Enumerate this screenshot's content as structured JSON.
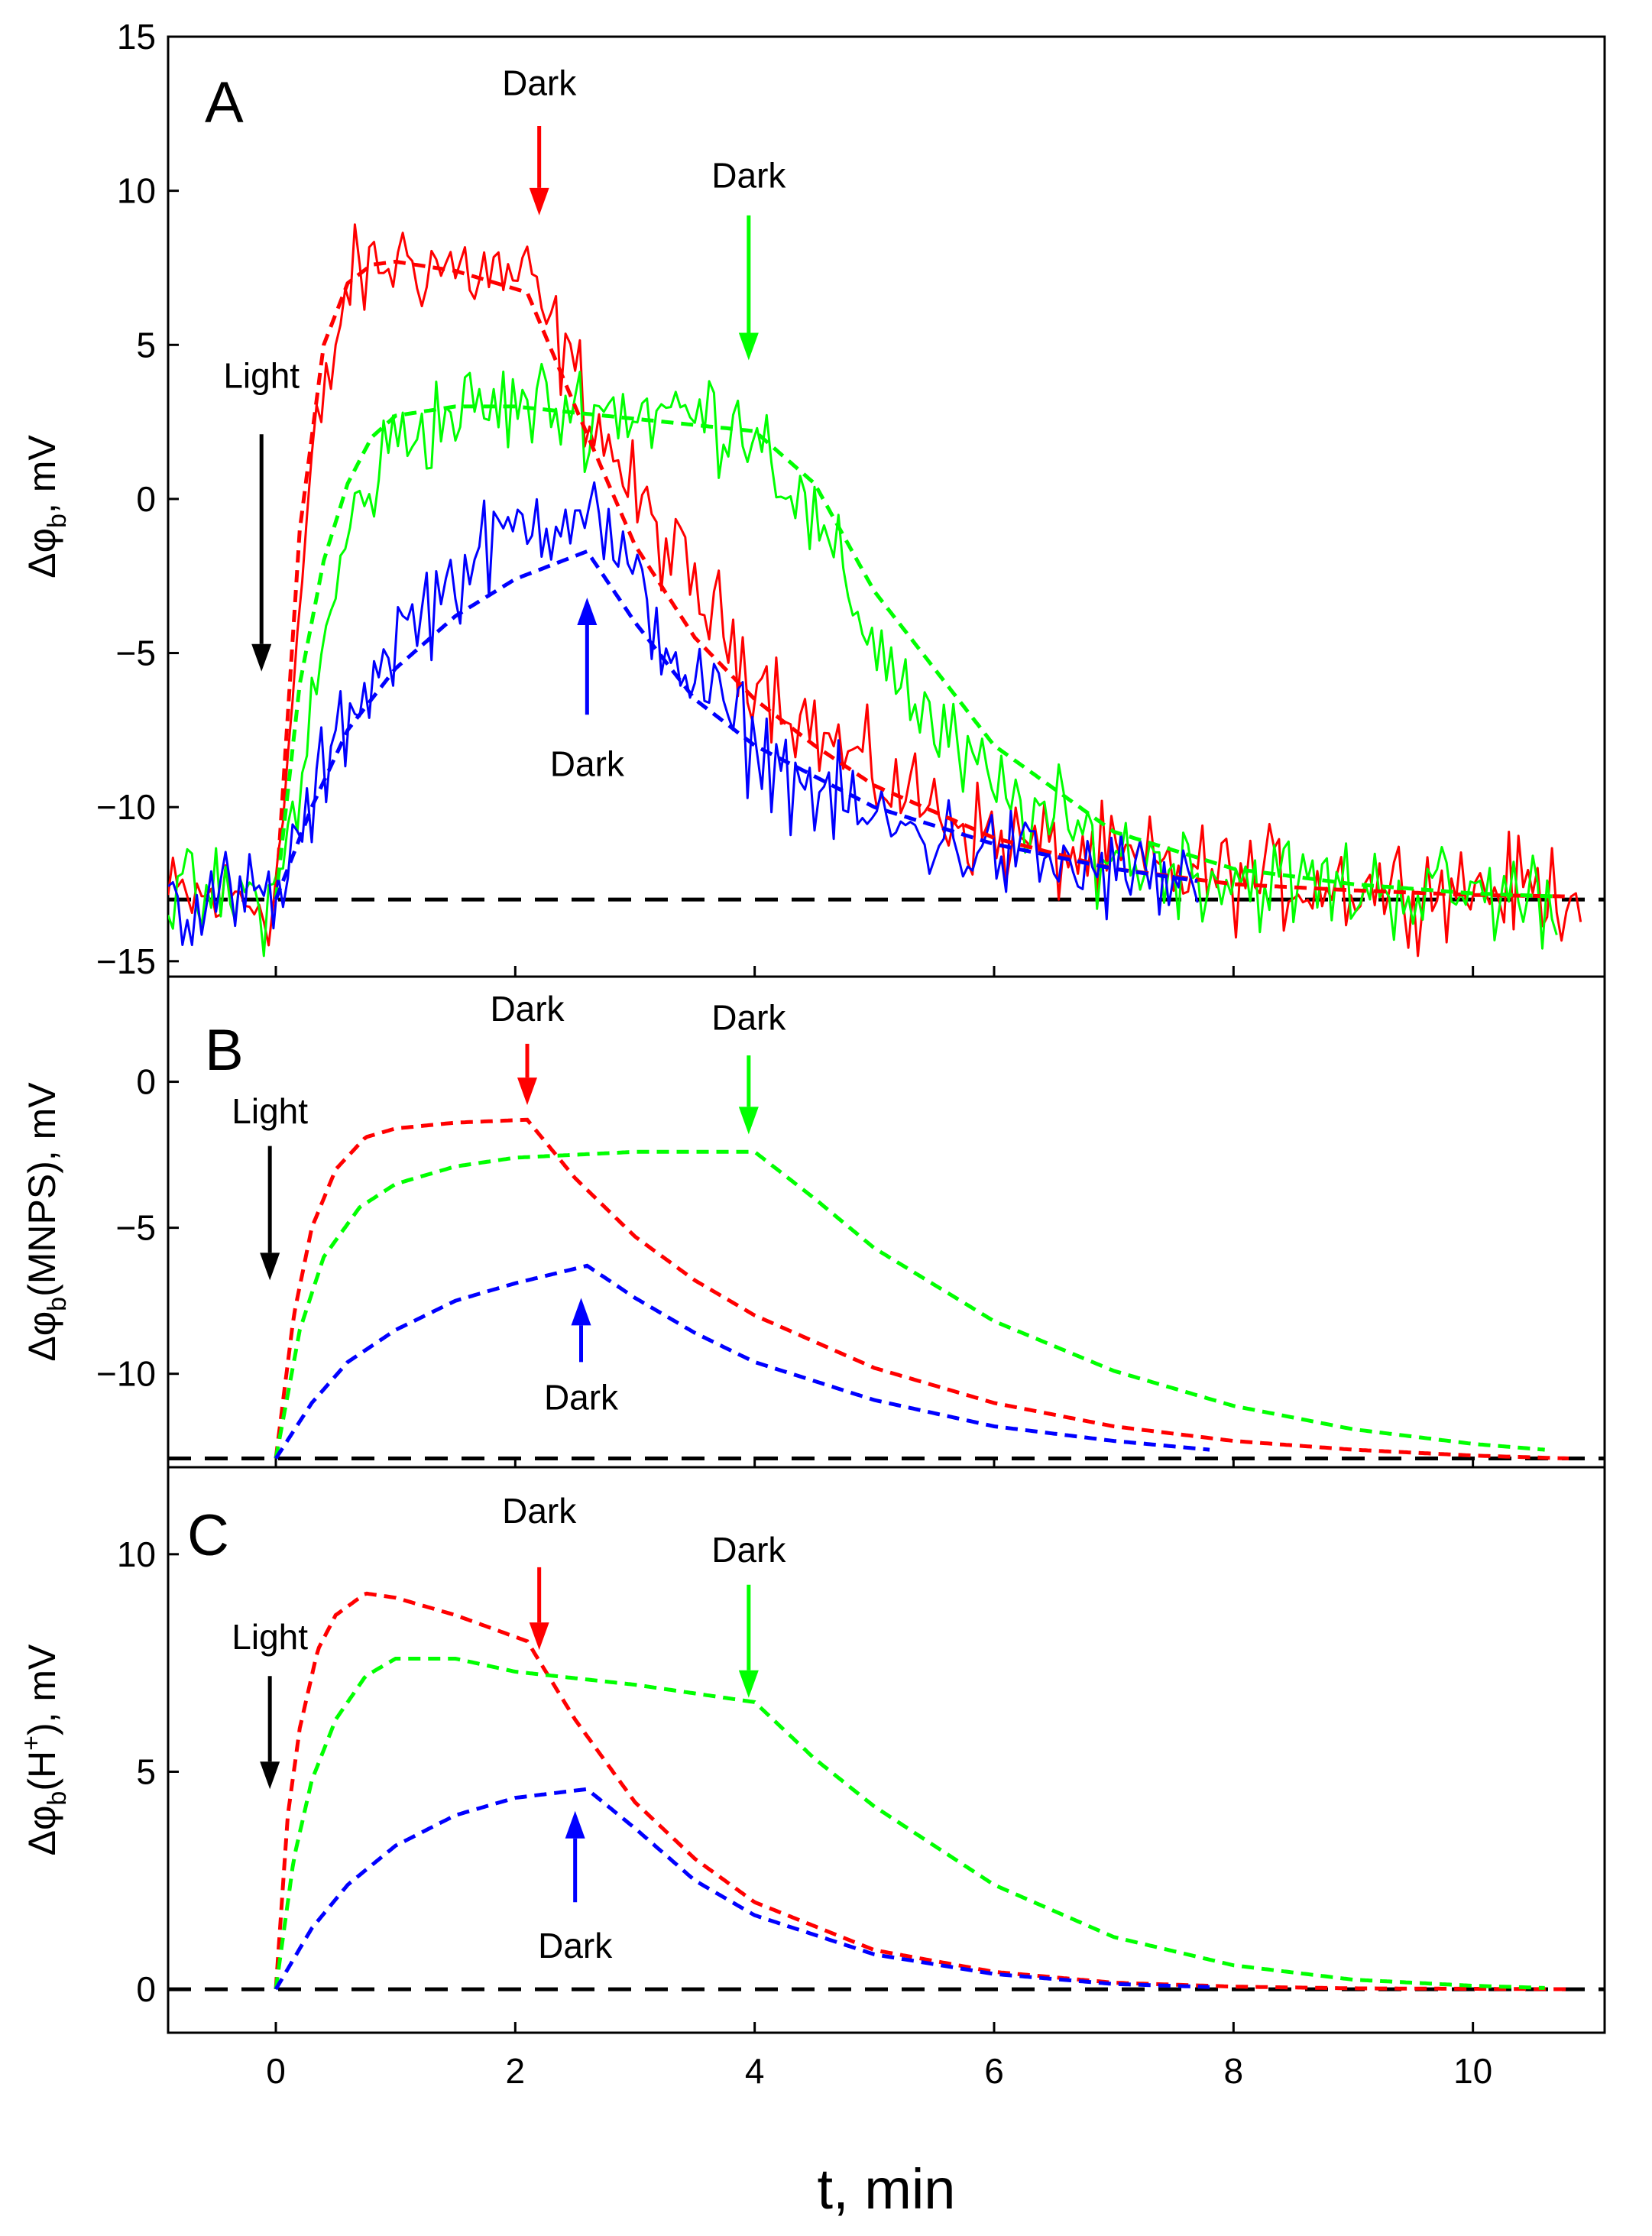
{
  "figure": {
    "xlabel": "t, min",
    "xlim": [
      -0.9,
      11.1
    ],
    "xticks": [
      0,
      2,
      4,
      6,
      8,
      10
    ],
    "xtick_labels": [
      "0",
      "2",
      "4",
      "6",
      "8",
      "10"
    ]
  },
  "colors": {
    "red": "#ff0000",
    "green": "#00ff00",
    "blue": "#0000ff",
    "black": "#000000"
  },
  "chart_data": [
    {
      "type": "line",
      "panel": "A",
      "ylabel_main": "Δφ",
      "ylabel_sub": "b",
      "ylabel_tail": ", mV",
      "ylim": [
        -15.5,
        15
      ],
      "yticks": [
        -15,
        -10,
        -5,
        0,
        5,
        10,
        15
      ],
      "ytick_labels": [
        "−15",
        "−10",
        "−5",
        "0",
        "5",
        "10",
        "15"
      ],
      "baseline": -13,
      "noise_amp": 1.0,
      "series": [
        {
          "color": "red",
          "style": "measured",
          "light_on": 0,
          "light_off": 2.1,
          "x": [
            -0.9,
            0,
            0.3,
            0.6,
            1.0,
            1.5,
            2.0,
            2.1,
            2.5,
            3.0,
            3.5,
            4.0,
            4.5,
            5.0,
            6.0,
            7.0,
            8.0,
            9.0,
            10.0,
            10.9
          ],
          "y": [
            -13,
            -13,
            1,
            7,
            7.8,
            7.5,
            7.2,
            7,
            4,
            0,
            -3,
            -5.5,
            -7.5,
            -9,
            -11,
            -11.8,
            -12.3,
            -12.5,
            -12.6,
            -12.7
          ]
        },
        {
          "color": "green",
          "style": "measured",
          "light_on": 0,
          "light_off": 4.0,
          "x": [
            -0.9,
            0,
            0.3,
            0.6,
            1.0,
            1.5,
            2.0,
            3.0,
            4.0,
            4.5,
            5.0,
            5.5,
            6.0,
            7.0,
            8.0,
            9.0,
            10.0,
            10.7
          ],
          "y": [
            -13,
            -13,
            -7,
            -1,
            2,
            2.8,
            3,
            2.9,
            2.5,
            -1,
            -4.5,
            -7.5,
            -9.5,
            -11.5,
            -12.3,
            -12.6,
            -12.8,
            -12.9
          ]
        },
        {
          "color": "blue",
          "style": "measured",
          "light_on": 0,
          "light_off": 2.6,
          "x": [
            -0.9,
            0,
            0.3,
            0.6,
            1.0,
            1.5,
            2.0,
            2.6,
            3.0,
            3.5,
            4.0,
            4.5,
            5.0,
            6.0,
            7.0,
            7.7
          ],
          "y": [
            -13,
            -13,
            -10,
            -7,
            -4.5,
            -2.5,
            -1,
            0,
            -3,
            -6,
            -8,
            -9.5,
            -10.5,
            -11.5,
            -12.2,
            -12.5
          ]
        },
        {
          "color": "red",
          "style": "fit",
          "x": [
            0,
            0.2,
            0.4,
            0.6,
            0.8,
            1.0,
            1.5,
            2.1,
            2.5,
            3.0,
            3.5,
            4.0,
            4.5,
            5.0,
            6.0,
            7.0,
            8.0,
            9.0,
            10.0,
            10.8
          ],
          "y": [
            -13,
            -1,
            5,
            7,
            7.6,
            7.7,
            7.4,
            6.7,
            3,
            -1.5,
            -4.5,
            -6.5,
            -8,
            -9.3,
            -11,
            -12,
            -12.5,
            -12.7,
            -12.85,
            -12.9
          ]
        },
        {
          "color": "green",
          "style": "fit",
          "x": [
            0,
            0.2,
            0.4,
            0.6,
            0.8,
            1.0,
            1.5,
            2.0,
            3.0,
            4.0,
            4.5,
            5.0,
            6.0,
            7.0,
            8.0,
            9.0,
            10.0,
            10.7
          ],
          "y": [
            -13,
            -6,
            -2,
            0.5,
            2,
            2.7,
            3,
            3,
            2.6,
            2.2,
            0.5,
            -3,
            -8,
            -10.8,
            -12,
            -12.5,
            -12.8,
            -12.9
          ]
        },
        {
          "color": "blue",
          "style": "fit",
          "x": [
            0,
            0.3,
            0.6,
            1.0,
            1.5,
            2.0,
            2.6,
            3.0,
            3.5,
            4.0,
            5.0,
            6.0,
            7.0,
            7.7
          ],
          "y": [
            -13,
            -10,
            -7.5,
            -5.5,
            -3.8,
            -2.6,
            -1.7,
            -4,
            -6.5,
            -8,
            -10,
            -11.2,
            -12,
            -12.4
          ]
        }
      ],
      "annotations": [
        {
          "text": "Light",
          "color": "black",
          "x": -0.12,
          "label_y": 4,
          "arrow_from": 2.1,
          "arrow_to": -5.6,
          "direction": "down"
        },
        {
          "text": "Dark",
          "color": "red",
          "x": 2.2,
          "label_y": 13.5,
          "arrow_from": 12.1,
          "arrow_to": 9.2,
          "direction": "down"
        },
        {
          "text": "Dark",
          "color": "green",
          "x": 3.95,
          "label_y": 10.5,
          "arrow_from": 9.2,
          "arrow_to": 4.5,
          "direction": "down"
        },
        {
          "text": "Dark",
          "color": "blue",
          "x": 2.6,
          "label_y": -8.6,
          "arrow_from": -7,
          "arrow_to": -3.2,
          "direction": "up"
        }
      ]
    },
    {
      "type": "line",
      "panel": "B",
      "ylabel_main": "Δφ",
      "ylabel_sub": "b",
      "ylabel_tail": "(MNPS), mV",
      "ylim": [
        -13.2,
        3.6
      ],
      "yticks": [
        -10,
        -5,
        0
      ],
      "ytick_labels": [
        "−10",
        "−5",
        "0"
      ],
      "baseline": -12.9,
      "series": [
        {
          "color": "red",
          "style": "fit",
          "x": [
            0,
            0.15,
            0.3,
            0.5,
            0.75,
            1.0,
            1.5,
            2.1,
            2.5,
            3.0,
            3.5,
            4.0,
            5.0,
            6.0,
            7.0,
            8.0,
            9.0,
            10.0,
            10.8
          ],
          "y": [
            -12.9,
            -8,
            -5,
            -3,
            -1.9,
            -1.6,
            -1.4,
            -1.3,
            -3.3,
            -5.3,
            -6.8,
            -8,
            -9.8,
            -11,
            -11.8,
            -12.3,
            -12.6,
            -12.8,
            -12.9
          ]
        },
        {
          "color": "green",
          "style": "fit",
          "x": [
            0,
            0.2,
            0.4,
            0.7,
            1.0,
            1.5,
            2.0,
            3.0,
            4.0,
            4.5,
            5.0,
            6.0,
            7.0,
            8.0,
            9.0,
            10.0,
            10.6
          ],
          "y": [
            -12.9,
            -8.5,
            -6,
            -4.3,
            -3.5,
            -2.9,
            -2.6,
            -2.4,
            -2.4,
            -4,
            -5.7,
            -8.2,
            -9.9,
            -11.1,
            -11.9,
            -12.4,
            -12.6
          ]
        },
        {
          "color": "blue",
          "style": "fit",
          "x": [
            0,
            0.3,
            0.6,
            1.0,
            1.5,
            2.0,
            2.6,
            3.0,
            3.5,
            4.0,
            5.0,
            6.0,
            7.0,
            7.8
          ],
          "y": [
            -12.9,
            -11,
            -9.6,
            -8.5,
            -7.5,
            -6.9,
            -6.3,
            -7.4,
            -8.6,
            -9.6,
            -10.9,
            -11.8,
            -12.3,
            -12.6
          ]
        }
      ],
      "annotations": [
        {
          "text": "Light",
          "color": "black",
          "x": -0.05,
          "label_y": -1,
          "arrow_from": -2.2,
          "arrow_to": -6.8,
          "direction": "down"
        },
        {
          "text": "Dark",
          "color": "red",
          "x": 2.1,
          "label_y": 2.5,
          "arrow_from": 1.3,
          "arrow_to": -0.8,
          "direction": "down"
        },
        {
          "text": "Dark",
          "color": "green",
          "x": 3.95,
          "label_y": 2.2,
          "arrow_from": 0.9,
          "arrow_to": -1.8,
          "direction": "down"
        },
        {
          "text": "Dark",
          "color": "blue",
          "x": 2.55,
          "label_y": -10.8,
          "arrow_from": -9.6,
          "arrow_to": -7.4,
          "direction": "up"
        }
      ]
    },
    {
      "type": "line",
      "panel": "C",
      "ylabel_main": "Δφ",
      "ylabel_sub": "b",
      "ylabel_mid": "(H",
      "ylabel_sup": "+",
      "ylabel_tail": "), mV",
      "ylim": [
        -1,
        12
      ],
      "yticks": [
        0,
        5,
        10
      ],
      "ytick_labels": [
        "0",
        "5",
        "10"
      ],
      "baseline": 0,
      "series": [
        {
          "color": "red",
          "style": "fit",
          "x": [
            0,
            0.1,
            0.2,
            0.35,
            0.5,
            0.75,
            1.0,
            1.5,
            2.1,
            2.5,
            3.0,
            3.5,
            4.0,
            5.0,
            6.0,
            7.0,
            8.0,
            9.0,
            10.0,
            10.8
          ],
          "y": [
            0,
            4,
            6,
            7.8,
            8.6,
            9.1,
            9.0,
            8.6,
            8.0,
            6.2,
            4.3,
            3.0,
            2.0,
            0.9,
            0.4,
            0.15,
            0.06,
            0.02,
            0.01,
            0
          ]
        },
        {
          "color": "green",
          "style": "fit",
          "x": [
            0,
            0.15,
            0.3,
            0.5,
            0.75,
            1.0,
            1.5,
            2.0,
            3.0,
            4.0,
            4.5,
            5.0,
            6.0,
            7.0,
            8.0,
            9.0,
            10.0,
            10.6
          ],
          "y": [
            0,
            3,
            4.8,
            6.2,
            7.2,
            7.6,
            7.6,
            7.3,
            7.0,
            6.6,
            5.3,
            4.2,
            2.4,
            1.2,
            0.55,
            0.22,
            0.08,
            0.03
          ]
        },
        {
          "color": "blue",
          "style": "fit",
          "x": [
            0,
            0.3,
            0.6,
            1.0,
            1.5,
            2.0,
            2.6,
            3.0,
            3.5,
            4.0,
            5.0,
            6.0,
            7.0,
            7.8
          ],
          "y": [
            0,
            1.4,
            2.4,
            3.3,
            4.0,
            4.4,
            4.6,
            3.7,
            2.5,
            1.7,
            0.8,
            0.35,
            0.12,
            0.05
          ]
        }
      ],
      "annotations": [
        {
          "text": "Light",
          "color": "black",
          "x": -0.05,
          "label_y": 8.1,
          "arrow_from": 7.2,
          "arrow_to": 4.6,
          "direction": "down"
        },
        {
          "text": "Dark",
          "color": "red",
          "x": 2.2,
          "label_y": 11.0,
          "arrow_from": 9.7,
          "arrow_to": 7.8,
          "direction": "down"
        },
        {
          "text": "Dark",
          "color": "green",
          "x": 3.95,
          "label_y": 10.1,
          "arrow_from": 9.3,
          "arrow_to": 6.7,
          "direction": "down"
        },
        {
          "text": "Dark",
          "color": "blue",
          "x": 2.5,
          "label_y": 1.0,
          "arrow_from": 2.0,
          "arrow_to": 4.1,
          "direction": "up"
        }
      ]
    }
  ]
}
